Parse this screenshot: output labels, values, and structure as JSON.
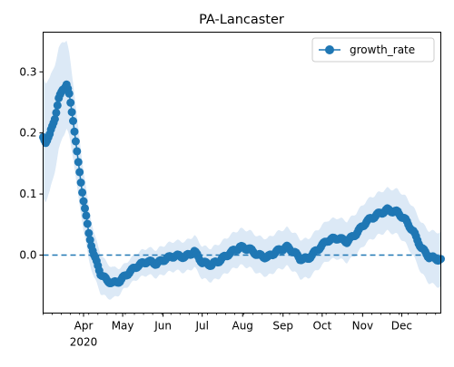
{
  "chart_data": {
    "type": "line",
    "title": "PA-Lancaster",
    "xlabel": "",
    "ylabel": "",
    "x_range": [
      "2020-03-01",
      "2020-12-31"
    ],
    "ylim": [
      -0.095,
      0.365
    ],
    "yticks": [
      0.0,
      0.1,
      0.2,
      0.3
    ],
    "ytick_labels": [
      "0.0",
      "0.1",
      "0.2",
      "0.3"
    ],
    "xticks": [
      {
        "date": "2020-04-01",
        "label": "Apr",
        "sublabel": "2020"
      },
      {
        "date": "2020-05-01",
        "label": "May",
        "sublabel": ""
      },
      {
        "date": "2020-06-01",
        "label": "Jun",
        "sublabel": ""
      },
      {
        "date": "2020-07-01",
        "label": "Jul",
        "sublabel": ""
      },
      {
        "date": "2020-08-01",
        "label": "Aug",
        "sublabel": ""
      },
      {
        "date": "2020-09-01",
        "label": "Sep",
        "sublabel": ""
      },
      {
        "date": "2020-10-01",
        "label": "Oct",
        "sublabel": ""
      },
      {
        "date": "2020-11-01",
        "label": "Nov",
        "sublabel": ""
      },
      {
        "date": "2020-12-01",
        "label": "Dec",
        "sublabel": ""
      }
    ],
    "grid": false,
    "legend_position": "top-right",
    "reference_line": {
      "y": 0.0,
      "style": "dashed"
    },
    "colors": {
      "series": "#1f77b4",
      "band": "#dce9f6"
    },
    "series": [
      {
        "name": "growth_rate",
        "band_half_width": [
          {
            "date": "2020-03-01",
            "value": 0.1
          },
          {
            "date": "2020-03-15",
            "value": 0.08
          },
          {
            "date": "2020-03-25",
            "value": 0.06
          },
          {
            "date": "2020-04-10",
            "value": 0.035
          },
          {
            "date": "2020-05-01",
            "value": 0.02
          },
          {
            "date": "2020-08-01",
            "value": 0.03
          },
          {
            "date": "2020-11-20",
            "value": 0.035
          },
          {
            "date": "2020-12-31",
            "value": 0.045
          }
        ],
        "points": [
          {
            "date": "2020-03-01",
            "value": 0.192
          },
          {
            "date": "2020-03-03",
            "value": 0.186
          },
          {
            "date": "2020-03-06",
            "value": 0.196
          },
          {
            "date": "2020-03-10",
            "value": 0.225
          },
          {
            "date": "2020-03-13",
            "value": 0.255
          },
          {
            "date": "2020-03-16",
            "value": 0.272
          },
          {
            "date": "2020-03-19",
            "value": 0.279
          },
          {
            "date": "2020-03-21",
            "value": 0.262
          },
          {
            "date": "2020-03-24",
            "value": 0.222
          },
          {
            "date": "2020-03-28",
            "value": 0.15
          },
          {
            "date": "2020-04-01",
            "value": 0.09
          },
          {
            "date": "2020-04-05",
            "value": 0.035
          },
          {
            "date": "2020-04-09",
            "value": 0.0
          },
          {
            "date": "2020-04-14",
            "value": -0.03
          },
          {
            "date": "2020-04-19",
            "value": -0.042
          },
          {
            "date": "2020-04-24",
            "value": -0.046
          },
          {
            "date": "2020-04-29",
            "value": -0.042
          },
          {
            "date": "2020-05-05",
            "value": -0.03
          },
          {
            "date": "2020-05-12",
            "value": -0.018
          },
          {
            "date": "2020-05-20",
            "value": -0.01
          },
          {
            "date": "2020-05-27",
            "value": -0.014
          },
          {
            "date": "2020-06-03",
            "value": -0.006
          },
          {
            "date": "2020-06-10",
            "value": -0.001
          },
          {
            "date": "2020-06-18",
            "value": -0.003
          },
          {
            "date": "2020-06-25",
            "value": 0.006
          },
          {
            "date": "2020-07-01",
            "value": -0.012
          },
          {
            "date": "2020-07-08",
            "value": -0.016
          },
          {
            "date": "2020-07-15",
            "value": -0.008
          },
          {
            "date": "2020-07-22",
            "value": 0.003
          },
          {
            "date": "2020-07-30",
            "value": 0.013
          },
          {
            "date": "2020-08-06",
            "value": 0.01
          },
          {
            "date": "2020-08-13",
            "value": 0.0
          },
          {
            "date": "2020-08-20",
            "value": -0.004
          },
          {
            "date": "2020-08-27",
            "value": 0.006
          },
          {
            "date": "2020-09-04",
            "value": 0.013
          },
          {
            "date": "2020-09-10",
            "value": 0.004
          },
          {
            "date": "2020-09-14",
            "value": -0.006
          },
          {
            "date": "2020-09-20",
            "value": -0.006
          },
          {
            "date": "2020-09-27",
            "value": 0.008
          },
          {
            "date": "2020-10-05",
            "value": 0.024
          },
          {
            "date": "2020-10-13",
            "value": 0.028
          },
          {
            "date": "2020-10-20",
            "value": 0.022
          },
          {
            "date": "2020-10-27",
            "value": 0.035
          },
          {
            "date": "2020-11-04",
            "value": 0.055
          },
          {
            "date": "2020-11-12",
            "value": 0.066
          },
          {
            "date": "2020-11-20",
            "value": 0.074
          },
          {
            "date": "2020-11-28",
            "value": 0.07
          },
          {
            "date": "2020-12-04",
            "value": 0.057
          },
          {
            "date": "2020-12-10",
            "value": 0.038
          },
          {
            "date": "2020-12-16",
            "value": 0.012
          },
          {
            "date": "2020-12-22",
            "value": -0.003
          },
          {
            "date": "2020-12-31",
            "value": -0.008
          }
        ]
      }
    ]
  }
}
